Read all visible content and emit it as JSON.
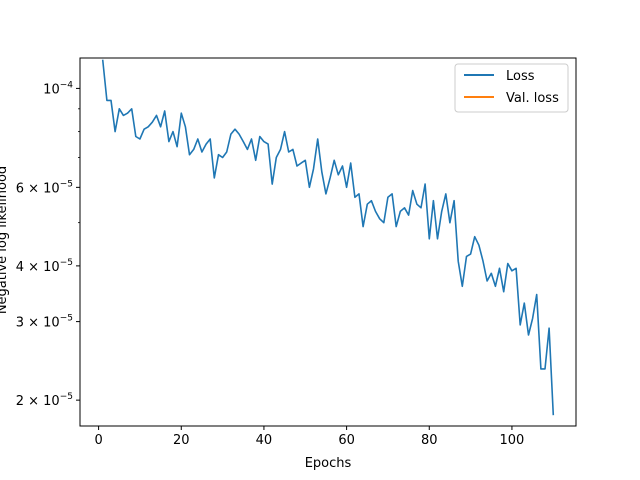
{
  "chart_data": {
    "type": "line",
    "title": "",
    "xlabel": "Epochs",
    "ylabel": "Negative log likelihood",
    "yscale": "log",
    "xlim": [
      -4.5,
      115.5
    ],
    "ylim": [
      1.75e-05,
      0.000117
    ],
    "x_ticks": [
      0,
      20,
      40,
      60,
      80,
      100
    ],
    "y_ticks": [
      {
        "value": 2e-05,
        "mantissa": "2",
        "exponent": "−5"
      },
      {
        "value": 3e-05,
        "mantissa": "3",
        "exponent": "−5"
      },
      {
        "value": 4e-05,
        "mantissa": "4",
        "exponent": "−5"
      },
      {
        "value": 6e-05,
        "mantissa": "6",
        "exponent": "−5"
      },
      {
        "value": 0.0001,
        "mantissa": "",
        "exponent": "−4"
      }
    ],
    "y_minor_ticks": [
      5e-05,
      7e-05,
      8e-05,
      9e-05
    ],
    "legend_position": "top-right",
    "series": [
      {
        "name": "Loss",
        "color": "#1f77b4",
        "x": [
          1,
          2,
          3,
          4,
          5,
          6,
          7,
          8,
          9,
          10,
          11,
          12,
          13,
          14,
          15,
          16,
          17,
          18,
          19,
          20,
          21,
          22,
          23,
          24,
          25,
          26,
          27,
          28,
          29,
          30,
          31,
          32,
          33,
          34,
          35,
          36,
          37,
          38,
          39,
          40,
          41,
          42,
          43,
          44,
          45,
          46,
          47,
          48,
          49,
          50,
          51,
          52,
          53,
          54,
          55,
          56,
          57,
          58,
          59,
          60,
          61,
          62,
          63,
          64,
          65,
          66,
          67,
          68,
          69,
          70,
          71,
          72,
          73,
          74,
          75,
          76,
          77,
          78,
          79,
          80,
          81,
          82,
          83,
          84,
          85,
          86,
          87,
          88,
          89,
          90,
          91,
          92,
          93,
          94,
          95,
          96,
          97,
          98,
          99,
          100,
          101,
          102,
          103,
          104,
          105,
          106,
          107,
          108,
          109,
          110
        ],
        "y": [
          0.000116,
          9.4e-05,
          9.4e-05,
          8e-05,
          9e-05,
          8.7e-05,
          8.8e-05,
          9e-05,
          7.8e-05,
          7.7e-05,
          8.1e-05,
          8.2e-05,
          8.4e-05,
          8.7e-05,
          8.2e-05,
          8.9e-05,
          7.6e-05,
          8e-05,
          7.4e-05,
          8.8e-05,
          8.2e-05,
          7.1e-05,
          7.3e-05,
          7.7e-05,
          7.2e-05,
          7.5e-05,
          7.7e-05,
          6.3e-05,
          7.1e-05,
          7e-05,
          7.2e-05,
          7.9e-05,
          8.1e-05,
          7.9e-05,
          7.6e-05,
          7.3e-05,
          7.7e-05,
          6.9e-05,
          7.8e-05,
          7.6e-05,
          7.5e-05,
          6.1e-05,
          7e-05,
          7.3e-05,
          8e-05,
          7.2e-05,
          7.3e-05,
          6.7e-05,
          6.8e-05,
          6.9e-05,
          6e-05,
          6.6e-05,
          7.7e-05,
          6.5e-05,
          5.8e-05,
          6.3e-05,
          6.9e-05,
          6.4e-05,
          6.7e-05,
          6e-05,
          6.8e-05,
          5.7e-05,
          5.8e-05,
          4.9e-05,
          5.5e-05,
          5.6e-05,
          5.3e-05,
          5.1e-05,
          5e-05,
          5.7e-05,
          5.8e-05,
          4.9e-05,
          5.3e-05,
          5.4e-05,
          5.2e-05,
          5.9e-05,
          5.5e-05,
          5.4e-05,
          6.1e-05,
          4.6e-05,
          5.6e-05,
          4.6e-05,
          5.3e-05,
          5.8e-05,
          5e-05,
          5.6e-05,
          4.1e-05,
          3.6e-05,
          4.2e-05,
          4.25e-05,
          4.65e-05,
          4.45e-05,
          4.1e-05,
          3.7e-05,
          3.85e-05,
          3.6e-05,
          3.95e-05,
          3.5e-05,
          4.05e-05,
          3.9e-05,
          3.95e-05,
          2.95e-05,
          3.3e-05,
          2.8e-05,
          3.05e-05,
          3.45e-05,
          2.35e-05,
          2.35e-05,
          2.9e-05,
          1.85e-05
        ]
      },
      {
        "name": "Val. loss",
        "color": "#ff7f0e",
        "x": [],
        "y": []
      }
    ]
  }
}
